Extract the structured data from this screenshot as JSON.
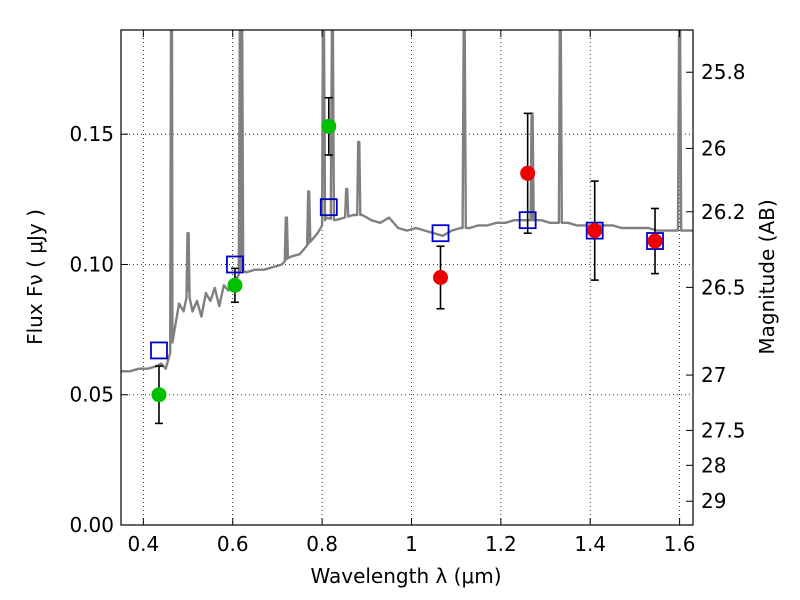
{
  "chart_data": {
    "type": "scatter",
    "xlabel": "Wavelength  λ (μm)",
    "ylabel": "Flux  Fν  ( μJy )",
    "y2label": "Magnitude (AB)",
    "xlim": [
      0.35,
      1.63
    ],
    "ylim": [
      0.0,
      0.19
    ],
    "grid": true,
    "x_ticks": [
      {
        "value": 0.4,
        "label": "0.4"
      },
      {
        "value": 0.6,
        "label": "0.6"
      },
      {
        "value": 0.8,
        "label": "0.8"
      },
      {
        "value": 1.0,
        "label": "1"
      },
      {
        "value": 1.2,
        "label": "1.2"
      },
      {
        "value": 1.4,
        "label": "1.4"
      },
      {
        "value": 1.6,
        "label": "1.6"
      }
    ],
    "y_ticks": [
      {
        "value": 0.0,
        "label": "0.00"
      },
      {
        "value": 0.05,
        "label": "0.05"
      },
      {
        "value": 0.1,
        "label": "0.10"
      },
      {
        "value": 0.15,
        "label": "0.15"
      }
    ],
    "y2_ticks": [
      {
        "value": 25.8,
        "label": "25.8"
      },
      {
        "value": 26.0,
        "label": "26"
      },
      {
        "value": 26.2,
        "label": "26.2"
      },
      {
        "value": 26.5,
        "label": "26.5"
      },
      {
        "value": 27.0,
        "label": "27"
      },
      {
        "value": 27.5,
        "label": "27.5"
      },
      {
        "value": 28.0,
        "label": "28"
      },
      {
        "value": 29.0,
        "label": "29"
      }
    ],
    "series": [
      {
        "kind": "spectrum-line",
        "color": "#808080",
        "x": [
          0.35,
          0.37,
          0.39,
          0.41,
          0.43,
          0.44,
          0.45,
          0.455,
          0.46,
          0.465,
          0.47,
          0.48,
          0.49,
          0.5,
          0.51,
          0.52,
          0.53,
          0.54,
          0.55,
          0.56,
          0.57,
          0.58,
          0.59,
          0.6,
          0.61,
          0.62,
          0.63,
          0.65,
          0.67,
          0.69,
          0.71,
          0.72,
          0.73,
          0.75,
          0.77,
          0.79,
          0.8,
          0.81,
          0.83,
          0.85,
          0.87,
          0.89,
          0.91,
          0.93,
          0.95,
          0.97,
          0.99,
          1.01,
          1.03,
          1.05,
          1.07,
          1.09,
          1.11,
          1.13,
          1.15,
          1.17,
          1.19,
          1.21,
          1.23,
          1.25,
          1.27,
          1.29,
          1.31,
          1.33,
          1.35,
          1.37,
          1.39,
          1.41,
          1.43,
          1.45,
          1.47,
          1.49,
          1.51,
          1.53,
          1.55,
          1.57,
          1.59,
          1.61,
          1.63
        ],
        "y": [
          0.059,
          0.059,
          0.06,
          0.06,
          0.061,
          0.062,
          0.06,
          0.063,
          0.066,
          0.07,
          0.075,
          0.085,
          0.082,
          0.09,
          0.082,
          0.086,
          0.08,
          0.089,
          0.086,
          0.091,
          0.084,
          0.092,
          0.09,
          0.094,
          0.095,
          0.098,
          0.097,
          0.098,
          0.098,
          0.099,
          0.1,
          0.102,
          0.103,
          0.104,
          0.108,
          0.112,
          0.115,
          0.118,
          0.117,
          0.118,
          0.119,
          0.119,
          0.117,
          0.116,
          0.118,
          0.114,
          0.113,
          0.114,
          0.113,
          0.112,
          0.111,
          0.113,
          0.114,
          0.114,
          0.115,
          0.115,
          0.116,
          0.116,
          0.117,
          0.117,
          0.117,
          0.117,
          0.116,
          0.116,
          0.116,
          0.115,
          0.115,
          0.115,
          0.115,
          0.115,
          0.114,
          0.114,
          0.114,
          0.114,
          0.113,
          0.113,
          0.113,
          0.113,
          0.113
        ]
      },
      {
        "kind": "model-photometry",
        "color": "#0000cc",
        "marker": "square-open",
        "x": [
          0.435,
          0.605,
          0.815,
          1.065,
          1.26,
          1.41,
          1.545
        ],
        "y": [
          0.067,
          0.1,
          0.122,
          0.112,
          0.117,
          0.113,
          0.109
        ]
      },
      {
        "kind": "observed-green",
        "color": "#00c000",
        "marker": "circle",
        "x": [
          0.435,
          0.605,
          0.815
        ],
        "y": [
          0.05,
          0.092,
          0.153
        ],
        "err": [
          0.011,
          0.0065,
          0.011
        ]
      },
      {
        "kind": "observed-red",
        "color": "#ee0000",
        "marker": "circle",
        "x": [
          1.065,
          1.26,
          1.41,
          1.545
        ],
        "y": [
          0.095,
          0.135,
          0.113,
          0.109
        ],
        "err": [
          0.012,
          0.023,
          0.019,
          0.0125
        ]
      }
    ],
    "emission_lines": [
      {
        "x": 0.463,
        "peak": 0.19
      },
      {
        "x": 0.617,
        "peak": 0.19
      },
      {
        "x": 0.62,
        "peak": 0.19
      },
      {
        "x": 0.803,
        "peak": 0.19
      },
      {
        "x": 0.823,
        "peak": 0.19
      },
      {
        "x": 0.882,
        "peak": 0.147
      },
      {
        "x": 1.118,
        "peak": 0.19
      },
      {
        "x": 1.27,
        "peak": 0.158
      },
      {
        "x": 1.333,
        "peak": 0.19
      },
      {
        "x": 1.6,
        "peak": 0.19
      }
    ],
    "small_features": [
      {
        "x": 0.5,
        "peak": 0.112
      },
      {
        "x": 0.72,
        "peak": 0.118
      },
      {
        "x": 0.77,
        "peak": 0.128
      },
      {
        "x": 0.855,
        "peak": 0.129
      }
    ]
  }
}
